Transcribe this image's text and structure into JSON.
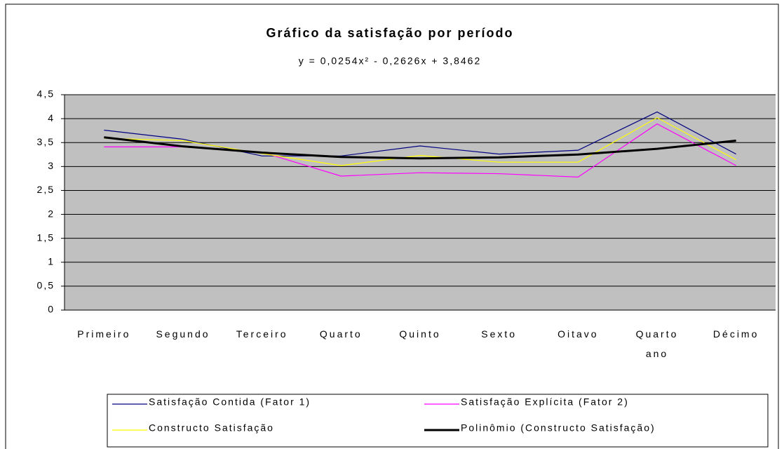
{
  "chart_data": {
    "type": "line",
    "title": "Gráfico da satisfação por período",
    "subtitle": "y = 0,0254x² - 0,2626x + 3,8462",
    "categories": [
      "Primeiro",
      "Segundo",
      "Terceiro",
      "Quarto",
      "Quinto",
      "Sexto",
      "Oitavo",
      "Quarto ano",
      "Décimo"
    ],
    "series": [
      {
        "name": "Satisfação Contida (Fator 1)",
        "color": "#000080",
        "values": [
          3.76,
          3.57,
          3.22,
          3.22,
          3.43,
          3.26,
          3.34,
          4.14,
          3.26
        ]
      },
      {
        "name": "Satisfação Explícita (Fator 2)",
        "color": "#ff00ff",
        "values": [
          3.41,
          3.41,
          3.3,
          2.8,
          2.87,
          2.85,
          2.78,
          3.89,
          3.02
        ]
      },
      {
        "name": "Constructo Satisfação",
        "color": "#ffff00",
        "values": [
          3.59,
          3.54,
          3.27,
          3.02,
          3.23,
          3.09,
          3.09,
          4.02,
          3.14
        ]
      },
      {
        "name": "Polinômio (Constructo Satisfação)",
        "color": "#000000",
        "values": [
          3.61,
          3.42,
          3.29,
          3.2,
          3.17,
          3.19,
          3.25,
          3.37,
          3.54
        ]
      }
    ],
    "ylim": [
      0,
      4.5
    ],
    "yticks": [
      0,
      {
        "value": 0.5,
        "label": "0,5"
      },
      1,
      {
        "value": 1.5,
        "label": "1,5"
      },
      2,
      {
        "value": 2.5,
        "label": "2,5"
      },
      3,
      {
        "value": 3.5,
        "label": "3,5"
      },
      4,
      {
        "value": 4.5,
        "label": "4,5"
      }
    ],
    "grid": true
  }
}
